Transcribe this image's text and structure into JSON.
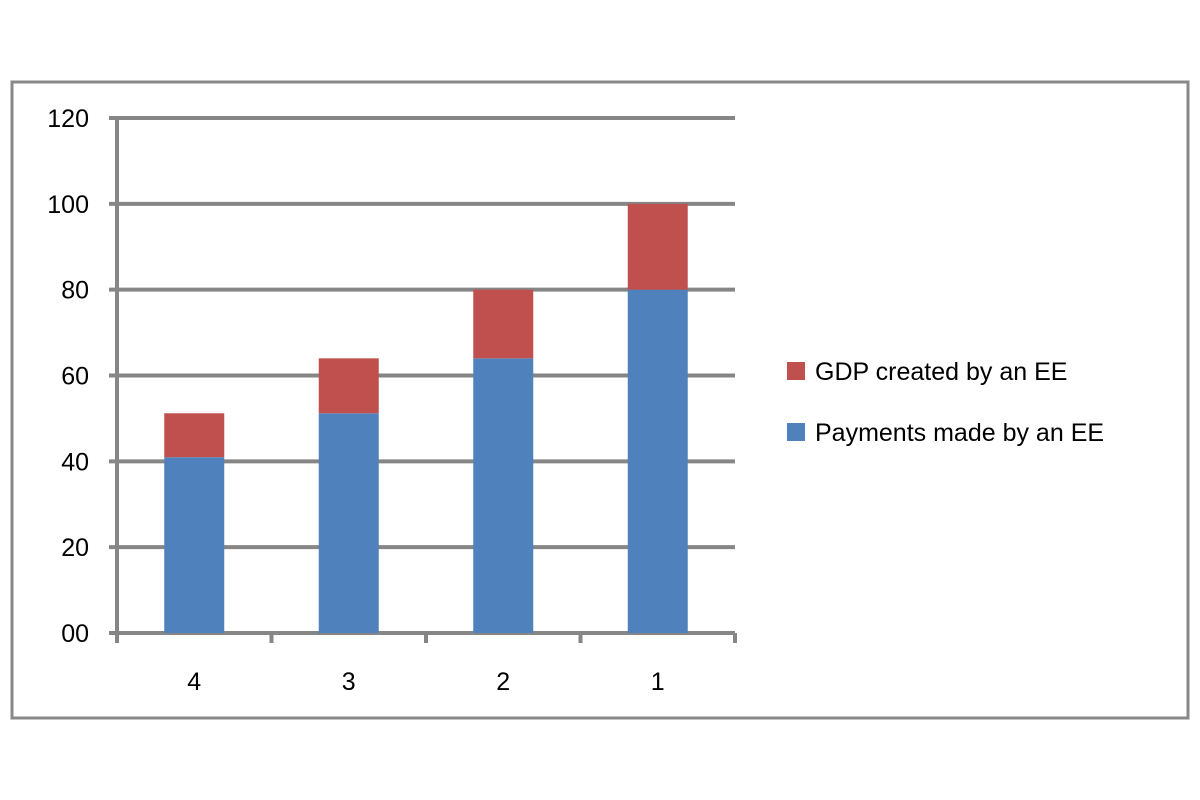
{
  "chart_data": {
    "type": "bar",
    "stacked": true,
    "title": "",
    "xlabel": "",
    "ylabel": "",
    "categories": [
      "4",
      "3",
      "2",
      "1"
    ],
    "series": [
      {
        "name": "Payments made by an EE",
        "color": "#4F81BD",
        "values": [
          40.96,
          51.2,
          64,
          80
        ]
      },
      {
        "name": "GDP created by an EE",
        "color": "#C0504D",
        "values": [
          10.24,
          12.8,
          16,
          20
        ]
      }
    ],
    "ylim": [
      0,
      120
    ],
    "yticks": [
      0,
      20,
      40,
      60,
      80,
      100,
      120
    ],
    "ytick_labels": [
      "00",
      "20",
      "40",
      "60",
      "80",
      "100",
      "120"
    ],
    "grid": true,
    "legend_placement": "right",
    "legend_order": [
      "GDP created by an EE",
      "Payments made by an EE"
    ]
  }
}
